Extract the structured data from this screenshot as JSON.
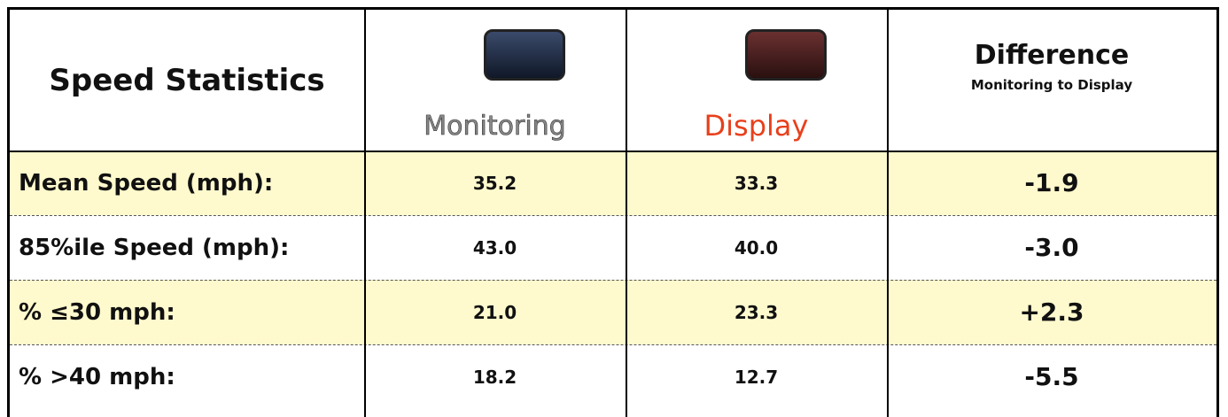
{
  "table": {
    "header": {
      "title": "Speed Statistics",
      "monitoring": "Monitoring",
      "display": "Display",
      "difference": "Difference",
      "difference_note": "Monitoring to Display"
    },
    "rows": [
      [
        "Mean Speed (mph):",
        "35.2",
        "33.3",
        "-1.9"
      ],
      [
        "85%ile Speed (mph):",
        "43.0",
        "40.0",
        "-3.0"
      ],
      [
        "% ≤30 mph:",
        "21.0",
        "23.3",
        "+2.3"
      ],
      [
        "% >40 mph:",
        "18.2",
        "12.7",
        "-5.5"
      ]
    ]
  }
}
